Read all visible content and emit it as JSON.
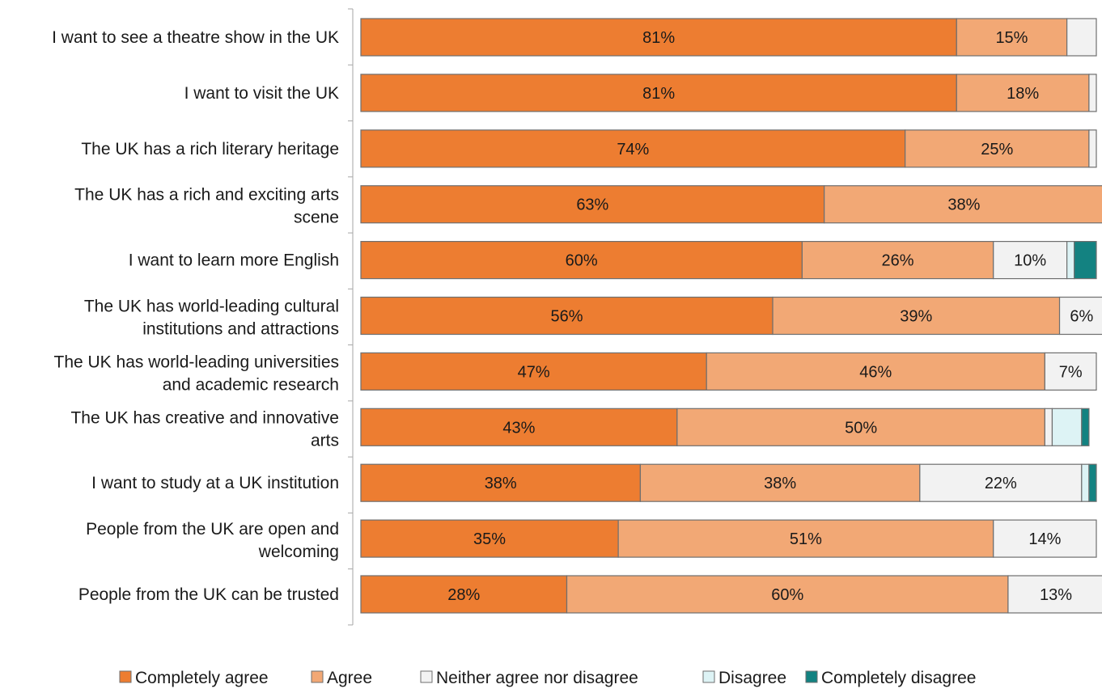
{
  "chart_data": {
    "type": "bar",
    "orientation": "horizontal",
    "stacked": true,
    "xlim": [
      0,
      100
    ],
    "grid": false,
    "legend_position": "bottom",
    "categories": [
      "I want to see a theatre show in the UK",
      "I want to visit the UK",
      "The UK has a rich literary heritage",
      "The UK has a rich and exciting arts scene",
      "I want to learn more English",
      "The UK has world-leading cultural institutions and attractions",
      "The UK has world-leading universities and academic research",
      "The UK has creative and innovative arts",
      "I want to study at a UK institution",
      "People from the UK are open and welcoming",
      "People from the UK can be trusted"
    ],
    "category_lines": [
      [
        "I want to see a theatre show in the UK"
      ],
      [
        "I want to visit the UK"
      ],
      [
        "The UK has a rich literary heritage"
      ],
      [
        "The UK has a rich and exciting arts",
        "scene"
      ],
      [
        "I want to learn more English"
      ],
      [
        "The UK has world-leading cultural",
        "institutions and attractions"
      ],
      [
        "The UK has world-leading universities",
        "and academic research"
      ],
      [
        "The UK has creative and innovative",
        "arts"
      ],
      [
        "I want to study at a UK institution"
      ],
      [
        "People from the UK are open and",
        "welcoming"
      ],
      [
        "People from the UK can be trusted"
      ]
    ],
    "series": [
      {
        "name": "Completely agree",
        "color": "#ED7D31",
        "values": [
          81,
          81,
          74,
          63,
          60,
          56,
          47,
          43,
          38,
          35,
          28
        ]
      },
      {
        "name": "Agree",
        "color": "#F2A875",
        "values": [
          15,
          18,
          25,
          38,
          26,
          39,
          46,
          50,
          38,
          51,
          60
        ]
      },
      {
        "name": "Neither agree nor disagree",
        "color": "#F2F2F2",
        "values": [
          4,
          1,
          1,
          0,
          10,
          6,
          7,
          1,
          22,
          14,
          13
        ]
      },
      {
        "name": "Disagree",
        "color": "#DDF3F5",
        "values": [
          0,
          0,
          0,
          0,
          1,
          0,
          0,
          4,
          1,
          0,
          0
        ]
      },
      {
        "name": "Completely disagree",
        "color": "#138281",
        "values": [
          0,
          0,
          0,
          0,
          3,
          0,
          0,
          1,
          1,
          0,
          0
        ]
      }
    ],
    "data_labels": [
      [
        "81%",
        "15%",
        "",
        "",
        ""
      ],
      [
        "81%",
        "18%",
        "",
        "",
        ""
      ],
      [
        "74%",
        "25%",
        "",
        "",
        ""
      ],
      [
        "63%",
        "38%",
        "",
        "",
        ""
      ],
      [
        "60%",
        "26%",
        "10%",
        "",
        ""
      ],
      [
        "56%",
        "39%",
        "6%",
        "",
        ""
      ],
      [
        "47%",
        "46%",
        "7%",
        "",
        ""
      ],
      [
        "43%",
        "50%",
        "",
        "",
        ""
      ],
      [
        "38%",
        "38%",
        "22%",
        "",
        ""
      ],
      [
        "35%",
        "51%",
        "14%",
        "",
        ""
      ],
      [
        "28%",
        "60%",
        "13%",
        "",
        ""
      ]
    ]
  }
}
